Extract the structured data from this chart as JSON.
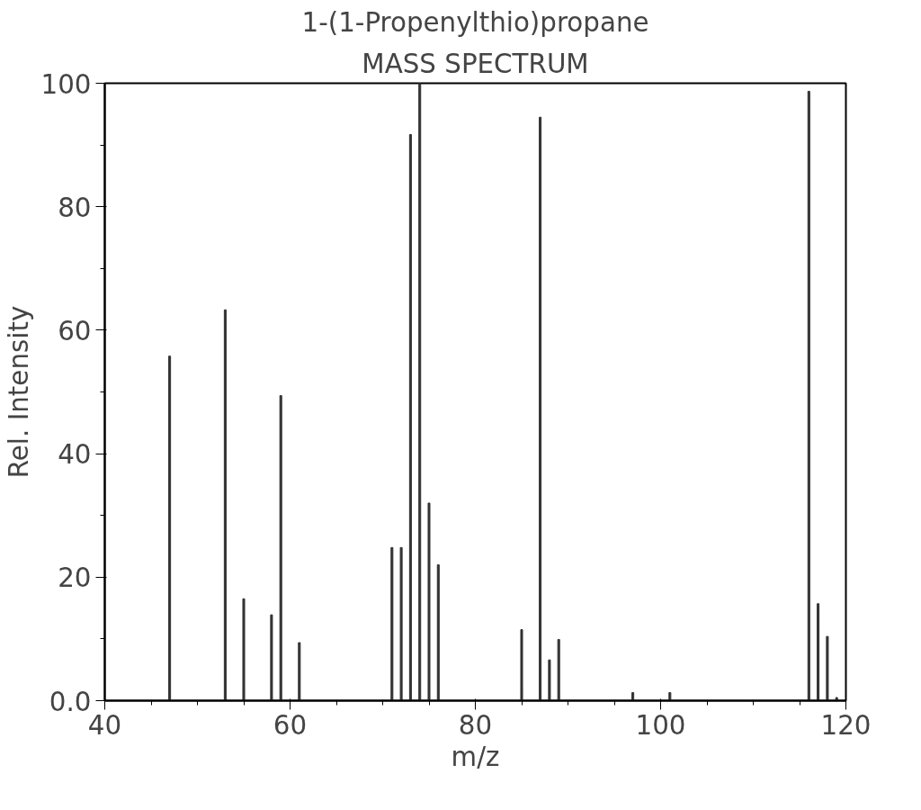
{
  "chart_data": {
    "type": "bar",
    "title": "1-(1-Propenylthio)propane",
    "subtitle": "MASS SPECTRUM",
    "xlabel": "m/z",
    "ylabel": "Rel. Intensity",
    "x": [
      47,
      53,
      55,
      58,
      59,
      61,
      71,
      72,
      73,
      74,
      75,
      76,
      85,
      87,
      88,
      89,
      97,
      101,
      116,
      117,
      118,
      119
    ],
    "values": [
      55.8,
      63.3,
      16.5,
      13.9,
      49.4,
      9.4,
      24.8,
      24.8,
      91.7,
      100,
      32,
      22,
      11.5,
      94.5,
      6.6,
      9.9,
      1.3,
      1.3,
      98.7,
      15.7,
      10.4,
      0.5
    ],
    "color": "#333333",
    "xlim": [
      40,
      120
    ],
    "xticks": [
      40,
      60,
      80,
      100,
      120
    ],
    "ylim": [
      0,
      100
    ],
    "yticks": [
      {
        "value": 0,
        "label": "0.0"
      },
      20,
      40,
      60,
      80,
      100
    ],
    "grid": false
  }
}
